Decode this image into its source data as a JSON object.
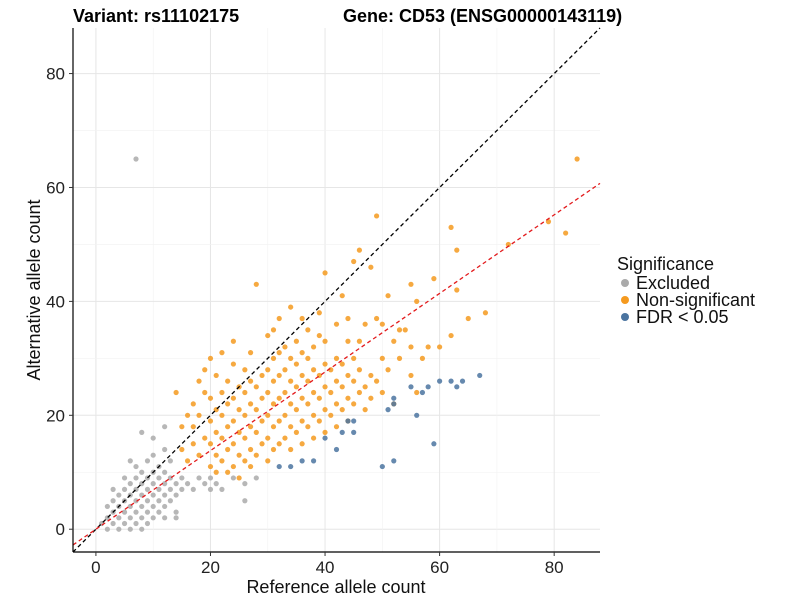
{
  "chart_data": {
    "type": "scatter",
    "title_variant": "Variant: rs11102175",
    "title_gene": "Gene: CD53 (ENSG00000143119)",
    "xlabel": "Reference allele count",
    "ylabel": "Alternative allele count",
    "xlim": [
      -4,
      88
    ],
    "ylim": [
      -4,
      88
    ],
    "xticks": [
      0,
      20,
      40,
      60,
      80
    ],
    "yticks": [
      0,
      20,
      40,
      60,
      80
    ],
    "grid": true,
    "legend_position": "right",
    "legend": {
      "title": "Significance",
      "items": [
        {
          "name": "Excluded",
          "color": "#aaaaaa"
        },
        {
          "name": "Non-significant",
          "color": "#f59a1f"
        },
        {
          "name": "FDR < 0.05",
          "color": "#4b74a0"
        }
      ]
    },
    "reference_lines": [
      {
        "name": "identity",
        "slope": 1,
        "intercept": 0,
        "color": "#000000",
        "dash": true
      },
      {
        "name": "fitted",
        "slope": 0.69,
        "intercept": 0,
        "color": "#e31a1c",
        "dash": true
      }
    ],
    "series": [
      {
        "name": "Excluded",
        "color": "#aaaaaa",
        "points": [
          [
            1,
            1
          ],
          [
            2,
            2
          ],
          [
            2,
            0
          ],
          [
            3,
            1
          ],
          [
            3,
            3
          ],
          [
            3,
            5
          ],
          [
            4,
            2
          ],
          [
            4,
            4
          ],
          [
            4,
            6
          ],
          [
            4,
            0
          ],
          [
            5,
            1
          ],
          [
            5,
            3
          ],
          [
            5,
            5
          ],
          [
            5,
            7
          ],
          [
            5,
            9
          ],
          [
            6,
            2
          ],
          [
            6,
            4
          ],
          [
            6,
            6
          ],
          [
            6,
            8
          ],
          [
            6,
            0
          ],
          [
            7,
            1
          ],
          [
            7,
            3
          ],
          [
            7,
            5
          ],
          [
            7,
            7
          ],
          [
            7,
            9
          ],
          [
            7,
            11
          ],
          [
            7,
            65
          ],
          [
            8,
            2
          ],
          [
            8,
            4
          ],
          [
            8,
            6
          ],
          [
            8,
            8
          ],
          [
            8,
            10
          ],
          [
            8,
            0
          ],
          [
            9,
            3
          ],
          [
            9,
            5
          ],
          [
            9,
            7
          ],
          [
            9,
            9
          ],
          [
            9,
            12
          ],
          [
            9,
            1
          ],
          [
            10,
            2
          ],
          [
            10,
            4
          ],
          [
            10,
            6
          ],
          [
            10,
            8
          ],
          [
            10,
            10
          ],
          [
            10,
            13
          ],
          [
            10,
            16
          ],
          [
            11,
            3
          ],
          [
            11,
            5
          ],
          [
            11,
            7
          ],
          [
            11,
            9
          ],
          [
            11,
            11
          ],
          [
            12,
            2
          ],
          [
            12,
            4
          ],
          [
            12,
            6
          ],
          [
            12,
            8
          ],
          [
            12,
            10
          ],
          [
            12,
            14
          ],
          [
            13,
            5
          ],
          [
            13,
            7
          ],
          [
            13,
            9
          ],
          [
            14,
            3
          ],
          [
            14,
            6
          ],
          [
            14,
            8
          ],
          [
            14,
            2
          ],
          [
            15,
            7
          ],
          [
            15,
            9
          ],
          [
            16,
            8
          ],
          [
            17,
            7
          ],
          [
            18,
            9
          ],
          [
            19,
            8
          ],
          [
            20,
            7
          ],
          [
            20,
            9
          ],
          [
            21,
            8
          ],
          [
            22,
            7
          ],
          [
            24,
            9
          ],
          [
            26,
            8
          ],
          [
            26,
            5
          ],
          [
            28,
            9
          ],
          [
            8,
            17
          ],
          [
            6,
            12
          ],
          [
            12,
            18
          ],
          [
            13,
            12
          ],
          [
            3,
            7
          ],
          [
            2,
            4
          ]
        ]
      },
      {
        "name": "Non-significant",
        "color": "#f59a1f",
        "points": [
          [
            14,
            24
          ],
          [
            15,
            14
          ],
          [
            16,
            12
          ],
          [
            17,
            18
          ],
          [
            17,
            22
          ],
          [
            18,
            13
          ],
          [
            18,
            20
          ],
          [
            19,
            16
          ],
          [
            19,
            24
          ],
          [
            20,
            11
          ],
          [
            20,
            15
          ],
          [
            20,
            19
          ],
          [
            20,
            23
          ],
          [
            21,
            13
          ],
          [
            21,
            17
          ],
          [
            21,
            21
          ],
          [
            21,
            27
          ],
          [
            22,
            12
          ],
          [
            22,
            16
          ],
          [
            22,
            20
          ],
          [
            22,
            24
          ],
          [
            23,
            14
          ],
          [
            23,
            18
          ],
          [
            23,
            22
          ],
          [
            23,
            26
          ],
          [
            24,
            11
          ],
          [
            24,
            15
          ],
          [
            24,
            19
          ],
          [
            24,
            23
          ],
          [
            24,
            29
          ],
          [
            25,
            13
          ],
          [
            25,
            17
          ],
          [
            25,
            21
          ],
          [
            25,
            25
          ],
          [
            26,
            12
          ],
          [
            26,
            16
          ],
          [
            26,
            20
          ],
          [
            26,
            24
          ],
          [
            26,
            28
          ],
          [
            27,
            14
          ],
          [
            27,
            18
          ],
          [
            27,
            22
          ],
          [
            27,
            26
          ],
          [
            27,
            31
          ],
          [
            28,
            13
          ],
          [
            28,
            17
          ],
          [
            28,
            21
          ],
          [
            28,
            25
          ],
          [
            28,
            43
          ],
          [
            29,
            15
          ],
          [
            29,
            19
          ],
          [
            29,
            23
          ],
          [
            29,
            27
          ],
          [
            30,
            12
          ],
          [
            30,
            16
          ],
          [
            30,
            20
          ],
          [
            30,
            24
          ],
          [
            30,
            28
          ],
          [
            30,
            34
          ],
          [
            31,
            14
          ],
          [
            31,
            18
          ],
          [
            31,
            22
          ],
          [
            31,
            26
          ],
          [
            31,
            30
          ],
          [
            32,
            15
          ],
          [
            32,
            19
          ],
          [
            32,
            23
          ],
          [
            32,
            27
          ],
          [
            32,
            31
          ],
          [
            32,
            37
          ],
          [
            33,
            16
          ],
          [
            33,
            20
          ],
          [
            33,
            24
          ],
          [
            33,
            28
          ],
          [
            33,
            32
          ],
          [
            34,
            14
          ],
          [
            34,
            18
          ],
          [
            34,
            22
          ],
          [
            34,
            26
          ],
          [
            34,
            30
          ],
          [
            34,
            39
          ],
          [
            35,
            17
          ],
          [
            35,
            21
          ],
          [
            35,
            25
          ],
          [
            35,
            29
          ],
          [
            35,
            33
          ],
          [
            36,
            15
          ],
          [
            36,
            19
          ],
          [
            36,
            23
          ],
          [
            36,
            27
          ],
          [
            36,
            31
          ],
          [
            37,
            18
          ],
          [
            37,
            22
          ],
          [
            37,
            26
          ],
          [
            37,
            30
          ],
          [
            37,
            35
          ],
          [
            38,
            16
          ],
          [
            38,
            20
          ],
          [
            38,
            24
          ],
          [
            38,
            28
          ],
          [
            38,
            32
          ],
          [
            39,
            19
          ],
          [
            39,
            23
          ],
          [
            39,
            27
          ],
          [
            39,
            38
          ],
          [
            40,
            17
          ],
          [
            40,
            21
          ],
          [
            40,
            25
          ],
          [
            40,
            29
          ],
          [
            40,
            33
          ],
          [
            40,
            45
          ],
          [
            41,
            20
          ],
          [
            41,
            24
          ],
          [
            41,
            28
          ],
          [
            42,
            18
          ],
          [
            42,
            22
          ],
          [
            42,
            26
          ],
          [
            42,
            30
          ],
          [
            42,
            36
          ],
          [
            43,
            21
          ],
          [
            43,
            25
          ],
          [
            43,
            29
          ],
          [
            44,
            19
          ],
          [
            44,
            23
          ],
          [
            44,
            27
          ],
          [
            44,
            33
          ],
          [
            45,
            22
          ],
          [
            45,
            26
          ],
          [
            45,
            30
          ],
          [
            45,
            47
          ],
          [
            46,
            24
          ],
          [
            46,
            28
          ],
          [
            46,
            49
          ],
          [
            47,
            21
          ],
          [
            47,
            25
          ],
          [
            47,
            36
          ],
          [
            48,
            23
          ],
          [
            48,
            27
          ],
          [
            48,
            46
          ],
          [
            49,
            26
          ],
          [
            49,
            37
          ],
          [
            49,
            55
          ],
          [
            50,
            24
          ],
          [
            50,
            30
          ],
          [
            50,
            36
          ],
          [
            51,
            28
          ],
          [
            51,
            41
          ],
          [
            52,
            22
          ],
          [
            52,
            33
          ],
          [
            53,
            30
          ],
          [
            53,
            35
          ],
          [
            54,
            35
          ],
          [
            55,
            32
          ],
          [
            55,
            27
          ],
          [
            55,
            43
          ],
          [
            56,
            24
          ],
          [
            56,
            40
          ],
          [
            57,
            30
          ],
          [
            58,
            32
          ],
          [
            59,
            44
          ],
          [
            60,
            32
          ],
          [
            62,
            34
          ],
          [
            62,
            53
          ],
          [
            63,
            49
          ],
          [
            63,
            42
          ],
          [
            65,
            37
          ],
          [
            68,
            38
          ],
          [
            72,
            50
          ],
          [
            79,
            54
          ],
          [
            82,
            52
          ],
          [
            84,
            65
          ],
          [
            16,
            20
          ],
          [
            18,
            26
          ],
          [
            19,
            28
          ],
          [
            20,
            30
          ],
          [
            22,
            31
          ],
          [
            24,
            33
          ],
          [
            15,
            18
          ],
          [
            17,
            15
          ],
          [
            21,
            10
          ],
          [
            25,
            9
          ],
          [
            27,
            11
          ],
          [
            23,
            10
          ],
          [
            31,
            35
          ],
          [
            36,
            37
          ],
          [
            39,
            34
          ],
          [
            43,
            41
          ],
          [
            44,
            37
          ],
          [
            46,
            33
          ]
        ]
      },
      {
        "name": "FDR < 0.05",
        "color": "#4b74a0",
        "points": [
          [
            32,
            11
          ],
          [
            34,
            11
          ],
          [
            36,
            12
          ],
          [
            38,
            12
          ],
          [
            40,
            16
          ],
          [
            42,
            14
          ],
          [
            43,
            17
          ],
          [
            44,
            19
          ],
          [
            45,
            17
          ],
          [
            45,
            19
          ],
          [
            50,
            11
          ],
          [
            52,
            12
          ],
          [
            51,
            21
          ],
          [
            52,
            23
          ],
          [
            52,
            22
          ],
          [
            55,
            25
          ],
          [
            56,
            20
          ],
          [
            57,
            24
          ],
          [
            58,
            25
          ],
          [
            59,
            15
          ],
          [
            60,
            26
          ],
          [
            62,
            26
          ],
          [
            63,
            25
          ],
          [
            64,
            26
          ],
          [
            67,
            27
          ]
        ]
      }
    ]
  }
}
